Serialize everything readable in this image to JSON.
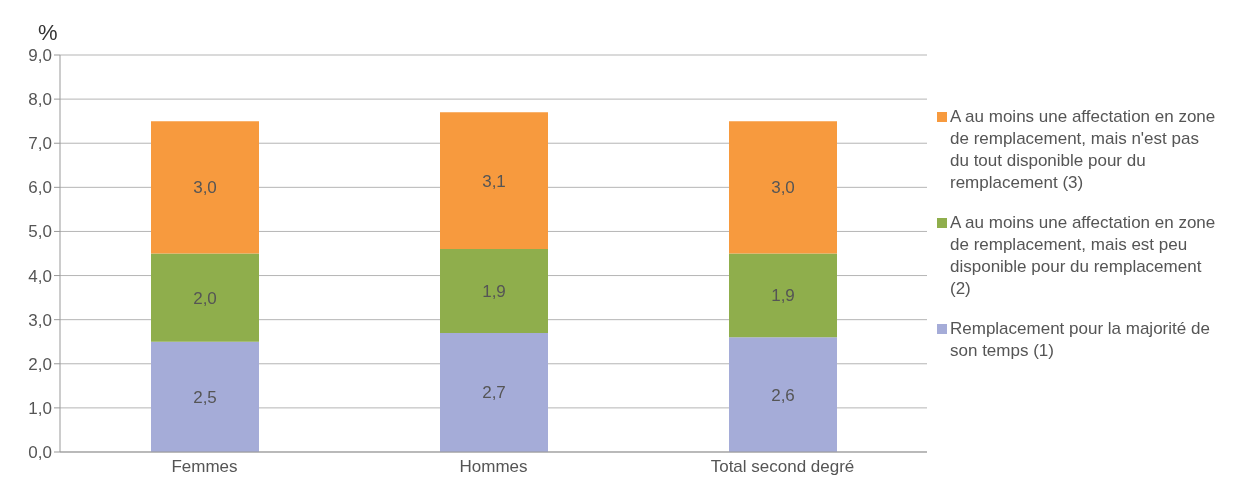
{
  "chart_data": {
    "type": "bar",
    "stacked": true,
    "ylabel": "%",
    "categories": [
      "Femmes",
      "Hommes",
      "Total second degré"
    ],
    "series": [
      {
        "name": "Remplacement pour la majorité de son temps (1)",
        "color": "#a5acd8",
        "values": [
          2.5,
          2.7,
          2.6
        ],
        "value_labels": [
          "2,5",
          "2,7",
          "2,6"
        ]
      },
      {
        "name": "A au moins une affectation en zone de remplacement, mais est peu disponible pour du remplacement (2)",
        "color": "#8fae4c",
        "values": [
          2.0,
          1.9,
          1.9
        ],
        "value_labels": [
          "2,0",
          "1,9",
          "1,9"
        ]
      },
      {
        "name": "A au moins une affectation en zone de remplacement, mais n'est pas du tout disponible pour du remplacement (3)",
        "color": "#f79a3e",
        "values": [
          3.0,
          3.1,
          3.0
        ],
        "value_labels": [
          "3,0",
          "3,1",
          "3,0"
        ]
      }
    ],
    "ylim": [
      0,
      9
    ],
    "yticks": [
      {
        "value": 0,
        "label": "0,0"
      },
      {
        "value": 1,
        "label": "1,0"
      },
      {
        "value": 2,
        "label": "2,0"
      },
      {
        "value": 3,
        "label": "3,0"
      },
      {
        "value": 4,
        "label": "4,0"
      },
      {
        "value": 5,
        "label": "5,0"
      },
      {
        "value": 6,
        "label": "6,0"
      },
      {
        "value": 7,
        "label": "7,0"
      },
      {
        "value": 8,
        "label": "8,0"
      },
      {
        "value": 9,
        "label": "9,0"
      }
    ],
    "grid": "y",
    "legend": "right"
  }
}
